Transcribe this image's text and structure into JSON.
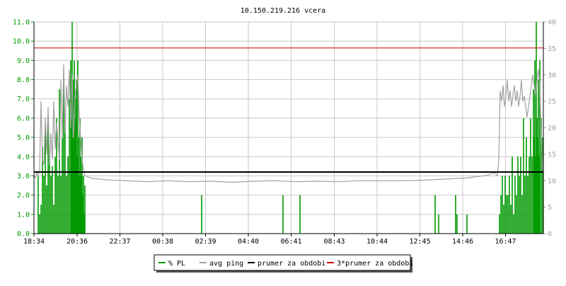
{
  "chart_data": {
    "type": "line",
    "title": "10.150.219.216 vcera",
    "left_axis": {
      "ylim": [
        0,
        11
      ],
      "ticks": [
        0,
        1,
        2,
        3,
        4,
        5,
        6,
        7,
        8,
        9,
        10,
        11
      ],
      "tick_labels": [
        "0.0",
        "1.0",
        "2.0",
        "3.0",
        "4.0",
        "5.0",
        "6.0",
        "7.0",
        "8.0",
        "9.0",
        "10.0",
        "11.0"
      ],
      "color": "#009900"
    },
    "right_axis": {
      "ylim": [
        0,
        40
      ],
      "ticks": [
        0,
        5,
        10,
        15,
        20,
        25,
        30,
        35,
        40
      ],
      "tick_labels": [
        "0",
        "5",
        "10",
        "15",
        "20",
        "25",
        "30",
        "35",
        "40"
      ],
      "color": "#a0a0a0"
    },
    "x_axis": {
      "ticks": [
        {
          "label": "18:34",
          "minutes": 0
        },
        {
          "label": "20:36",
          "minutes": 122
        },
        {
          "label": "22:37",
          "minutes": 243
        },
        {
          "label": "00:38",
          "minutes": 364
        },
        {
          "label": "02:39",
          "minutes": 485
        },
        {
          "label": "04:40",
          "minutes": 606
        },
        {
          "label": "06:41",
          "minutes": 727
        },
        {
          "label": "08:43",
          "minutes": 849
        },
        {
          "label": "10:44",
          "minutes": 970
        },
        {
          "label": "12:45",
          "minutes": 1091
        },
        {
          "label": "14:46",
          "minutes": 1212
        },
        {
          "label": "16:47",
          "minutes": 1333
        }
      ],
      "end_minutes": 1440
    },
    "grid": true,
    "series": [
      {
        "name": "% PL",
        "color": "#009900",
        "axis": "left",
        "style": "spikes",
        "points": [
          [
            12,
            3.0
          ],
          [
            16,
            1.0
          ],
          [
            20,
            1.5
          ],
          [
            24,
            4.5
          ],
          [
            28,
            3.0
          ],
          [
            32,
            5.5
          ],
          [
            36,
            2.5
          ],
          [
            40,
            6.0
          ],
          [
            44,
            4.0
          ],
          [
            48,
            3.0
          ],
          [
            52,
            3.5
          ],
          [
            56,
            1.5
          ],
          [
            60,
            4.0
          ],
          [
            64,
            6.0
          ],
          [
            68,
            3.0
          ],
          [
            72,
            7.5
          ],
          [
            76,
            3.0
          ],
          [
            80,
            5.0
          ],
          [
            84,
            8.0
          ],
          [
            88,
            6.0
          ],
          [
            92,
            3.0
          ],
          [
            96,
            4.0
          ],
          [
            100,
            7.0
          ],
          [
            104,
            9.0
          ],
          [
            106,
            6.0
          ],
          [
            108,
            11.0
          ],
          [
            110,
            5.0
          ],
          [
            112,
            8.0
          ],
          [
            114,
            9.0
          ],
          [
            116,
            6.0
          ],
          [
            118,
            7.0
          ],
          [
            120,
            8.0
          ],
          [
            122,
            4.0
          ],
          [
            124,
            9.0
          ],
          [
            126,
            5.0
          ],
          [
            128,
            3.0
          ],
          [
            130,
            6.0
          ],
          [
            132,
            4.0
          ],
          [
            134,
            3.0
          ],
          [
            136,
            5.0
          ],
          [
            138,
            2.0
          ],
          [
            140,
            3.0
          ],
          [
            142,
            1.0
          ],
          [
            144,
            2.5
          ],
          [
            474,
            2.0
          ],
          [
            704,
            2.0
          ],
          [
            752,
            2.0
          ],
          [
            1134,
            2.0
          ],
          [
            1144,
            1.0
          ],
          [
            1192,
            2.0
          ],
          [
            1196,
            1.0
          ],
          [
            1224,
            1.0
          ],
          [
            1316,
            1.0
          ],
          [
            1320,
            2.0
          ],
          [
            1324,
            3.0
          ],
          [
            1328,
            1.5
          ],
          [
            1332,
            3.0
          ],
          [
            1336,
            2.0
          ],
          [
            1340,
            2.0
          ],
          [
            1344,
            3.0
          ],
          [
            1348,
            1.5
          ],
          [
            1352,
            4.0
          ],
          [
            1356,
            1.0
          ],
          [
            1360,
            3.0
          ],
          [
            1364,
            2.0
          ],
          [
            1368,
            4.0
          ],
          [
            1372,
            3.0
          ],
          [
            1376,
            4.0
          ],
          [
            1380,
            2.0
          ],
          [
            1384,
            6.0
          ],
          [
            1388,
            3.0
          ],
          [
            1392,
            5.0
          ],
          [
            1396,
            3.0
          ],
          [
            1400,
            4.0
          ],
          [
            1404,
            6.0
          ],
          [
            1408,
            4.0
          ],
          [
            1412,
            7.5
          ],
          [
            1414,
            5.0
          ],
          [
            1416,
            9.0
          ],
          [
            1418,
            4.0
          ],
          [
            1420,
            11.0
          ],
          [
            1422,
            6.0
          ],
          [
            1424,
            5.0
          ],
          [
            1426,
            8.0
          ],
          [
            1428,
            4.0
          ],
          [
            1430,
            9.0
          ],
          [
            1434,
            6.0
          ],
          [
            1438,
            5.0
          ]
        ]
      },
      {
        "name": "avg ping",
        "color": "#a0a0a0",
        "axis": "right",
        "style": "line",
        "points": [
          [
            0,
            11
          ],
          [
            4,
            10.5
          ],
          [
            8,
            11.5
          ],
          [
            12,
            11
          ],
          [
            16,
            12
          ],
          [
            20,
            25
          ],
          [
            24,
            14
          ],
          [
            28,
            13
          ],
          [
            32,
            22
          ],
          [
            36,
            15
          ],
          [
            40,
            24
          ],
          [
            44,
            13
          ],
          [
            48,
            19
          ],
          [
            52,
            14
          ],
          [
            56,
            25
          ],
          [
            60,
            16
          ],
          [
            64,
            21
          ],
          [
            68,
            17
          ],
          [
            72,
            14
          ],
          [
            76,
            29
          ],
          [
            80,
            18
          ],
          [
            84,
            32
          ],
          [
            88,
            19
          ],
          [
            92,
            28
          ],
          [
            96,
            24
          ],
          [
            100,
            31
          ],
          [
            104,
            20
          ],
          [
            108,
            30
          ],
          [
            112,
            18
          ],
          [
            116,
            26
          ],
          [
            120,
            28
          ],
          [
            124,
            30
          ],
          [
            128,
            22
          ],
          [
            132,
            18
          ],
          [
            136,
            14
          ],
          [
            140,
            12
          ],
          [
            144,
            11
          ],
          [
            160,
            10.5
          ],
          [
            200,
            10.2
          ],
          [
            260,
            10
          ],
          [
            320,
            9.8
          ],
          [
            380,
            10
          ],
          [
            440,
            9.8
          ],
          [
            500,
            9.9
          ],
          [
            560,
            9.7
          ],
          [
            620,
            9.9
          ],
          [
            680,
            10
          ],
          [
            740,
            9.8
          ],
          [
            800,
            9.9
          ],
          [
            860,
            9.8
          ],
          [
            920,
            10
          ],
          [
            980,
            10
          ],
          [
            1040,
            10
          ],
          [
            1100,
            10.1
          ],
          [
            1160,
            10.3
          ],
          [
            1220,
            10.5
          ],
          [
            1280,
            11
          ],
          [
            1300,
            11.5
          ],
          [
            1310,
            11
          ],
          [
            1314,
            14
          ],
          [
            1318,
            27
          ],
          [
            1322,
            25
          ],
          [
            1326,
            28
          ],
          [
            1330,
            24
          ],
          [
            1334,
            26
          ],
          [
            1338,
            29
          ],
          [
            1342,
            25
          ],
          [
            1346,
            27
          ],
          [
            1350,
            24
          ],
          [
            1354,
            26
          ],
          [
            1358,
            28
          ],
          [
            1362,
            25
          ],
          [
            1366,
            27
          ],
          [
            1370,
            24
          ],
          [
            1374,
            26
          ],
          [
            1378,
            29
          ],
          [
            1382,
            25
          ],
          [
            1386,
            26
          ],
          [
            1390,
            24
          ],
          [
            1394,
            22
          ],
          [
            1398,
            24
          ],
          [
            1402,
            26
          ],
          [
            1406,
            28
          ],
          [
            1410,
            30
          ],
          [
            1414,
            28
          ],
          [
            1418,
            26
          ],
          [
            1422,
            29
          ],
          [
            1426,
            31
          ],
          [
            1430,
            28
          ],
          [
            1434,
            18
          ],
          [
            1438,
            12
          ]
        ]
      },
      {
        "name": "prumer za obdobi",
        "color": "#000000",
        "axis": "left",
        "style": "hline",
        "value": 3.2
      },
      {
        "name": "3*prumer za obdobi",
        "color": "#cc0000",
        "axis": "left",
        "style": "hline",
        "value": 9.65
      }
    ],
    "legend_position": "bottom-center"
  }
}
